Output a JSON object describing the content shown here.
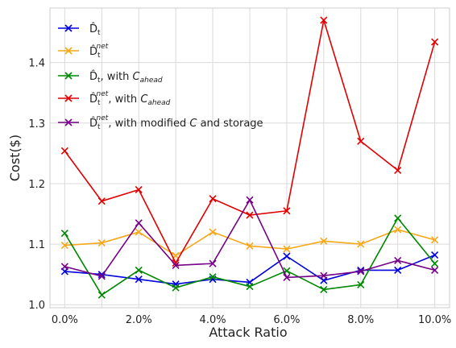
{
  "chart_data": {
    "type": "line",
    "xlabel": "Attack Ratio",
    "ylabel": "Cost($)",
    "x_ticks": [
      "0.0%",
      "2.0%",
      "4.0%",
      "6.0%",
      "8.0%",
      "10.0%"
    ],
    "y_ticks": [
      "1.0",
      "1.1",
      "1.2",
      "1.3",
      "1.4"
    ],
    "x": [
      0,
      1,
      2,
      3,
      4,
      5,
      6,
      7,
      8,
      9,
      10
    ],
    "xlim": [
      -0.4,
      10.4
    ],
    "ylim": [
      0.995,
      1.49
    ],
    "grid": true,
    "legend_position": "top-left",
    "marker": "x",
    "series": [
      {
        "name": "D̂_t",
        "color": "#0000dd",
        "values": [
          1.055,
          1.05,
          1.042,
          1.034,
          1.042,
          1.037,
          1.08,
          1.04,
          1.057,
          1.057,
          1.082
        ]
      },
      {
        "name": "D̂_t^net",
        "color": "#f5a818",
        "values": [
          1.098,
          1.102,
          1.12,
          1.081,
          1.12,
          1.097,
          1.092,
          1.105,
          1.1,
          1.124,
          1.107
        ]
      },
      {
        "name": "D̂_t, with C_ahead",
        "color": "#008800",
        "values": [
          1.118,
          1.016,
          1.057,
          1.028,
          1.046,
          1.03,
          1.056,
          1.025,
          1.033,
          1.143,
          1.068
        ]
      },
      {
        "name": "D̂_t^net, with C_ahead",
        "color": "#e00000",
        "values": [
          1.254,
          1.171,
          1.19,
          1.069,
          1.175,
          1.148,
          1.155,
          1.47,
          1.27,
          1.222,
          1.434
        ]
      },
      {
        "name": "D̂_t^net, with modified C and storage",
        "color": "#750087",
        "values": [
          1.063,
          1.047,
          1.135,
          1.065,
          1.068,
          1.173,
          1.045,
          1.048,
          1.055,
          1.073,
          1.057
        ]
      }
    ]
  }
}
